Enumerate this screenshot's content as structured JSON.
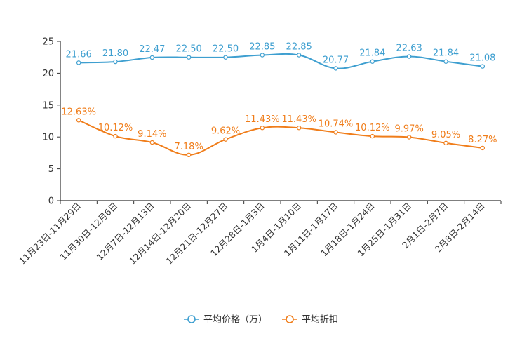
{
  "chart_data": {
    "type": "line",
    "title": "",
    "xlabel": "",
    "ylabel": "",
    "ylim": [
      0,
      25
    ],
    "yticks": [
      0,
      5,
      10,
      15,
      20,
      25
    ],
    "grid": false,
    "legend_position": "bottom-center",
    "categories": [
      "11月23日-11月29日",
      "11月30日-12月6日",
      "12月7日-12月13日",
      "12月14日-12月20日",
      "12月21日-12月27日",
      "12月28日-1月3日",
      "1月4日-1月10日",
      "1月11日-1月17日",
      "1月18日-1月24日",
      "1月25日-1月31日",
      "2月1日-2月7日",
      "2月8日-2月14日"
    ],
    "series": [
      {
        "name": "平均价格（万）",
        "color": "#3e9fd0",
        "values": [
          21.66,
          21.8,
          22.47,
          22.5,
          22.5,
          22.85,
          22.85,
          20.77,
          21.84,
          22.63,
          21.84,
          21.08
        ],
        "labels": [
          "21.66",
          "21.80",
          "22.47",
          "22.50",
          "22.50",
          "22.85",
          "22.85",
          "20.77",
          "21.84",
          "22.63",
          "21.84",
          "21.08"
        ]
      },
      {
        "name": "平均折扣",
        "color": "#f07d1a",
        "values": [
          12.63,
          10.12,
          9.14,
          7.18,
          9.62,
          11.43,
          11.43,
          10.74,
          10.12,
          9.97,
          9.05,
          8.27
        ],
        "labels": [
          "12.63%",
          "10.12%",
          "9.14%",
          "7.18%",
          "9.62%",
          "11.43%",
          "11.43%",
          "10.74%",
          "10.12%",
          "9.97%",
          "9.05%",
          "8.27%"
        ]
      }
    ]
  }
}
